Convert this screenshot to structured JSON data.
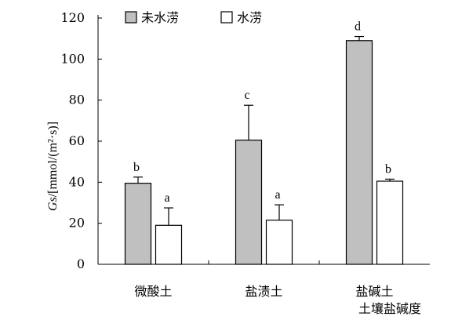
{
  "chart_data": {
    "type": "bar",
    "categories": [
      "微酸土",
      "盐渍土",
      "盐碱土"
    ],
    "series": [
      {
        "name": "未水涝",
        "color": "#c0c0c0",
        "values": [
          39.5,
          60.5,
          109
        ],
        "errors": [
          3,
          17,
          2
        ],
        "letters": [
          "b",
          "c",
          "d"
        ]
      },
      {
        "name": "水涝",
        "color": "#ffffff",
        "values": [
          19,
          21.5,
          40.5
        ],
        "errors": [
          8.5,
          7.5,
          1
        ],
        "letters": [
          "a",
          "a",
          "b"
        ]
      }
    ],
    "ylim": [
      0,
      120
    ],
    "yticks": [
      0,
      20,
      40,
      60,
      80,
      100,
      120
    ],
    "ylabel_prefix": "Gs",
    "ylabel_suffix": "/[mmol/(m²·s)]",
    "xlabel": "土壤盐碱度",
    "legend_position": "top-left",
    "grid": false
  }
}
